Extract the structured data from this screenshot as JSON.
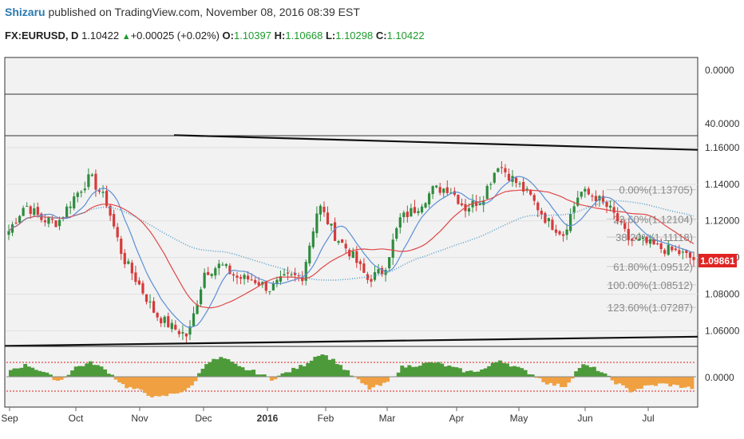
{
  "header": {
    "author": "Shizaru",
    "published_text": "published on TradingView.com, November 08, 2016 08:39 EST",
    "symbol": "FX:EURUSD, D",
    "last": "1.10422",
    "change_arrow": "▲",
    "change": "+0.00025 (+0.02%)",
    "open_label": "O:",
    "open": "1.10397",
    "high_label": "H:",
    "high": "1.10668",
    "low_label": "L:",
    "low": "1.10298",
    "close_label": "C:",
    "close": "1.10422"
  },
  "panes": {
    "pane1_tick": "0.0000",
    "pane2_tick": "40.0000",
    "oscillator_tick": "0.0000"
  },
  "colors": {
    "up": "#2e8b3e",
    "down": "#d63a3a",
    "ma_fast": "#5b8fd6",
    "ma_slow": "#e04848",
    "ma_long": "#5aa0c8",
    "fib_text": "#8a8a8a",
    "price_label": "#e02424",
    "osc_up": "#4d9a3a",
    "osc_down": "#f0a040",
    "osc_band": "#e24a4a"
  },
  "chart_data": {
    "type": "candlestick",
    "symbol": "FX:EURUSD",
    "interval": "D",
    "x_axis_labels": [
      "Sep",
      "Oct",
      "Nov",
      "Dec",
      "2016",
      "Feb",
      "Mar",
      "Apr",
      "May",
      "Jun",
      "Jul"
    ],
    "y_axis_ticks": [
      "1.16000",
      "1.14000",
      "1.12000",
      "1.10000",
      "1.08000",
      "1.06000"
    ],
    "ylim": [
      1.0515,
      1.1665
    ],
    "current_price_label": "1.09861",
    "fibonacci_levels": [
      {
        "label": "0.00%(1.13705)",
        "price": 1.13705
      },
      {
        "label": "23.60%(1.12104)",
        "price": 1.12104
      },
      {
        "label": "38.20%(1.11118)",
        "price": 1.11118
      },
      {
        "label": "61.80%(1.09512)",
        "price": 1.09512
      },
      {
        "label": "100.00%(1.08512)",
        "price": 1.08512
      },
      {
        "label": "123.60%(1.07287)",
        "price": 1.07287
      }
    ],
    "trendlines": [
      {
        "from": [
          "Nov",
          1.1668
        ],
        "to": [
          "end",
          1.1588
        ]
      },
      {
        "from": [
          "start",
          1.0518
        ],
        "to": [
          "end",
          1.0568
        ]
      }
    ],
    "price_path": [
      [
        "Sep",
        1.1145
      ],
      [
        null,
        1.129
      ],
      [
        null,
        1.121
      ],
      [
        "Oct",
        1.119
      ],
      [
        null,
        1.133
      ],
      [
        null,
        1.144
      ],
      [
        null,
        1.13
      ],
      [
        "Nov",
        1.1
      ],
      [
        null,
        1.085
      ],
      [
        null,
        1.069
      ],
      [
        null,
        1.062
      ],
      [
        "Dec",
        1.057
      ],
      [
        null,
        1.092
      ],
      [
        null,
        1.096
      ],
      [
        null,
        1.089
      ],
      [
        "2016",
        1.088
      ],
      [
        null,
        1.083
      ],
      [
        null,
        1.089
      ],
      [
        "Feb",
        1.09
      ],
      [
        null,
        1.129
      ],
      [
        null,
        1.112
      ],
      [
        null,
        1.102
      ],
      [
        "Mar",
        1.088
      ],
      [
        null,
        1.093
      ],
      [
        null,
        1.121
      ],
      [
        null,
        1.127
      ],
      [
        "Apr",
        1.137
      ],
      [
        null,
        1.138
      ],
      [
        null,
        1.127
      ],
      [
        null,
        1.132
      ],
      [
        "May",
        1.151
      ],
      [
        null,
        1.142
      ],
      [
        null,
        1.133
      ],
      [
        null,
        1.12
      ],
      [
        null,
        1.113
      ],
      [
        "Jun",
        1.136
      ],
      [
        null,
        1.133
      ],
      [
        null,
        1.125
      ],
      [
        null,
        1.11
      ],
      [
        "Jul",
        1.108
      ],
      [
        null,
        1.105
      ],
      [
        null,
        1.103
      ],
      [
        null,
        1.099
      ]
    ],
    "oscillator": {
      "tick": "0.0000",
      "values": [
        0.3,
        0.5,
        0.2,
        -0.2,
        0.4,
        0.6,
        0.2,
        -0.4,
        -0.6,
        -0.9,
        -0.7,
        -0.5,
        0.6,
        0.8,
        0.4,
        0.2,
        -0.1,
        0.2,
        0.5,
        1.0,
        0.6,
        0.0,
        -0.5,
        -0.3,
        0.4,
        0.5,
        0.6,
        0.4,
        0.2,
        0.3,
        0.7,
        0.4,
        0.1,
        -0.3,
        -0.4,
        0.5,
        0.3,
        -0.2,
        -0.6,
        -0.4,
        -0.3,
        -0.4,
        -0.5
      ]
    }
  }
}
